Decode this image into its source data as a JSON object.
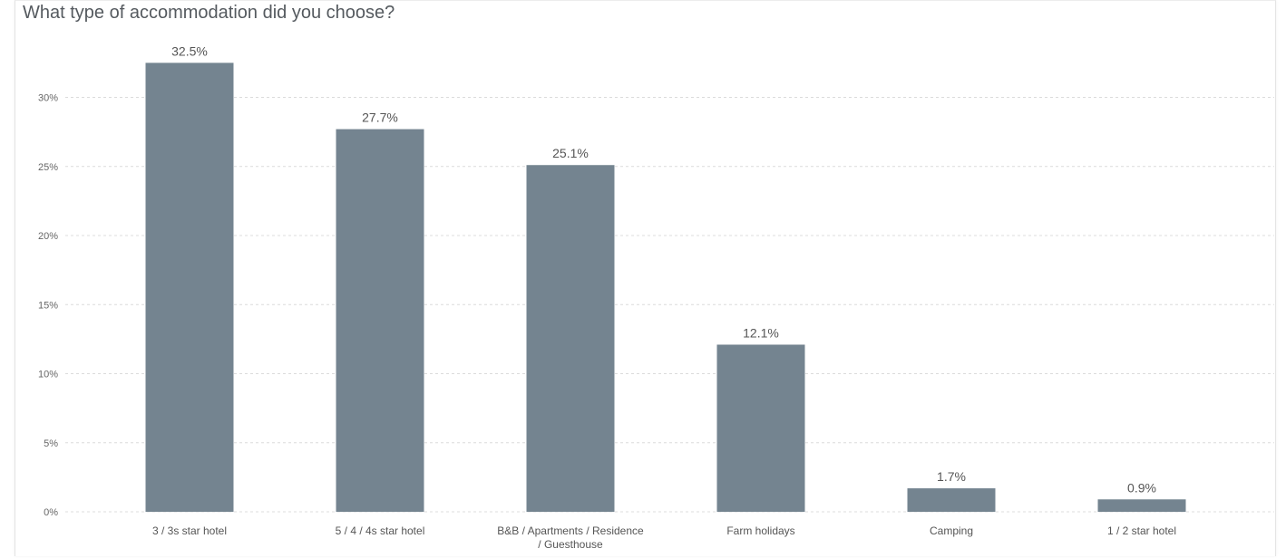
{
  "chart_data": {
    "type": "bar",
    "title": "What type of accommodation did you choose?",
    "categories": [
      [
        "3 / 3s star hotel"
      ],
      [
        "5 / 4 / 4s star hotel"
      ],
      [
        "B&B / Apartments / Residence",
        "/ Guesthouse"
      ],
      [
        "Farm holidays"
      ],
      [
        "Camping"
      ],
      [
        "1 / 2 star hotel"
      ]
    ],
    "values": [
      32.5,
      27.7,
      25.1,
      12.1,
      1.7,
      0.9
    ],
    "value_labels": [
      "32.5%",
      "27.7%",
      "25.1%",
      "12.1%",
      "1.7%",
      "0.9%"
    ],
    "y_ticks": [
      0,
      5,
      10,
      15,
      20,
      25,
      30
    ],
    "y_tick_labels": [
      "0%",
      "5%",
      "10%",
      "15%",
      "20%",
      "25%",
      "30%"
    ],
    "ylim": [
      0,
      35
    ],
    "xlabel": "",
    "ylabel": "",
    "grid": true,
    "legend": "none",
    "bar_color": "#748490"
  }
}
